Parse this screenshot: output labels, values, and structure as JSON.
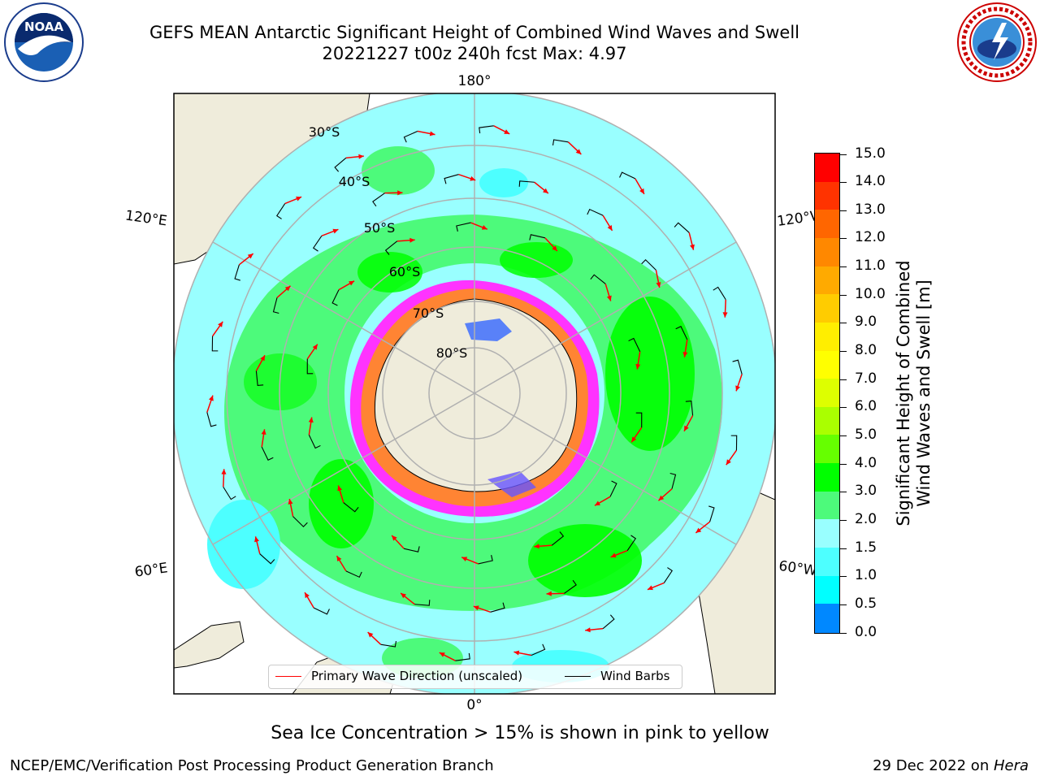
{
  "title": {
    "line1": "GEFS MEAN Antarctic Significant Height of Combined Wind Waves and Swell",
    "line2": "20221227 t00z 240h fcst   Max: 4.97"
  },
  "map": {
    "longitude_labels": {
      "top": "180°",
      "bottom": "0°",
      "upper_left": "120°E",
      "upper_right": "120°W",
      "lower_left": "60°E",
      "lower_right": "60°W"
    },
    "latitude_labels": [
      "30°S",
      "40°S",
      "50°S",
      "60°S",
      "70°S",
      "80°S"
    ],
    "colors": {
      "land": "#efecdb",
      "ocean_2_3m": "#99ffff",
      "ocean_3_4m": "#4dfa7b",
      "ocean_4_5m": "#00ff00",
      "ocean_1_5_2m": "#4dffff",
      "sea_ice_low": "#ff33ff",
      "sea_ice_mid": "#ff9900",
      "sea_ice_high": "#ffff66",
      "wave_arrow": "#ff0000",
      "wind_barb": "#000000",
      "graticule": "#b0b0b0"
    }
  },
  "colorbar": {
    "title_line1": "Significant Height of Combined",
    "title_line2": "Wind Waves and Swell [m]",
    "labels": [
      "15.0",
      "14.0",
      "13.0",
      "12.0",
      "11.0",
      "10.0",
      "9.0",
      "8.0",
      "7.0",
      "6.0",
      "5.0",
      "4.0",
      "3.0",
      "2.0",
      "1.5",
      "1.0",
      "0.5",
      "0.0"
    ],
    "colors_top_to_bottom": [
      "#ff0000",
      "#ff3300",
      "#ff6600",
      "#ff8800",
      "#ffaa00",
      "#ffcc00",
      "#ffee00",
      "#ffff00",
      "#ddff00",
      "#aaff00",
      "#66ff00",
      "#00ff00",
      "#4dfa7b",
      "#99ffff",
      "#4dffff",
      "#00ffff",
      "#0088ff",
      "#0000ff"
    ]
  },
  "legend": {
    "wave_label": "Primary Wave Direction (unscaled)",
    "wind_label": "Wind Barbs"
  },
  "note": "Sea Ice Concentration > 15% is shown in pink to yellow",
  "footer": {
    "left": "NCEP/EMC/Verification Post Processing Product Generation Branch",
    "date": "29 Dec 2022 on ",
    "host": "Hera"
  }
}
